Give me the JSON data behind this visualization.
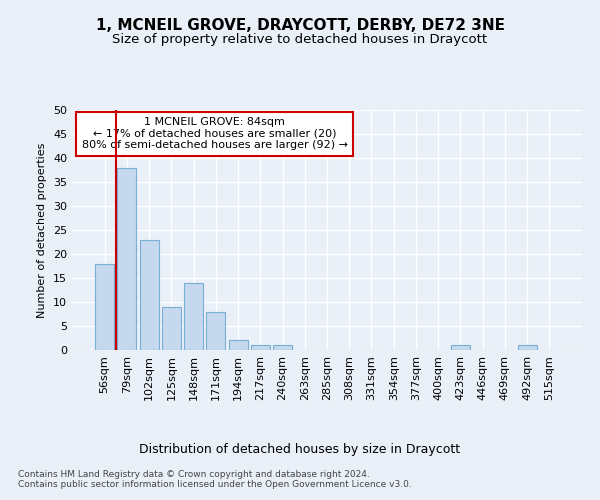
{
  "title1": "1, MCNEIL GROVE, DRAYCOTT, DERBY, DE72 3NE",
  "title2": "Size of property relative to detached houses in Draycott",
  "xlabel": "Distribution of detached houses by size in Draycott",
  "ylabel": "Number of detached properties",
  "footnote": "Contains HM Land Registry data © Crown copyright and database right 2024.\nContains public sector information licensed under the Open Government Licence v3.0.",
  "categories": [
    "56sqm",
    "79sqm",
    "102sqm",
    "125sqm",
    "148sqm",
    "171sqm",
    "194sqm",
    "217sqm",
    "240sqm",
    "263sqm",
    "285sqm",
    "308sqm",
    "331sqm",
    "354sqm",
    "377sqm",
    "400sqm",
    "423sqm",
    "446sqm",
    "469sqm",
    "492sqm",
    "515sqm"
  ],
  "values": [
    18,
    38,
    23,
    9,
    14,
    8,
    2,
    1,
    1,
    0,
    0,
    0,
    0,
    0,
    0,
    0,
    1,
    0,
    0,
    1,
    0
  ],
  "bar_color": "#c5d8ed",
  "bar_edge_color": "#7aafd4",
  "marker_bin_index": 1,
  "marker_color": "#cc0000",
  "annotation_text": "1 MCNEIL GROVE: 84sqm\n← 17% of detached houses are smaller (20)\n80% of semi-detached houses are larger (92) →",
  "annotation_box_color": "#ffffff",
  "annotation_box_edge_color": "#cc0000",
  "ylim": [
    0,
    50
  ],
  "yticks": [
    0,
    5,
    10,
    15,
    20,
    25,
    30,
    35,
    40,
    45,
    50
  ],
  "bg_color": "#eaf0f8",
  "plot_bg_color": "#eaf0f8",
  "grid_color": "#ffffff",
  "title1_fontsize": 11,
  "title2_fontsize": 9.5,
  "xlabel_fontsize": 9,
  "ylabel_fontsize": 8,
  "tick_fontsize": 8,
  "annotation_fontsize": 8,
  "footnote_fontsize": 6.5
}
